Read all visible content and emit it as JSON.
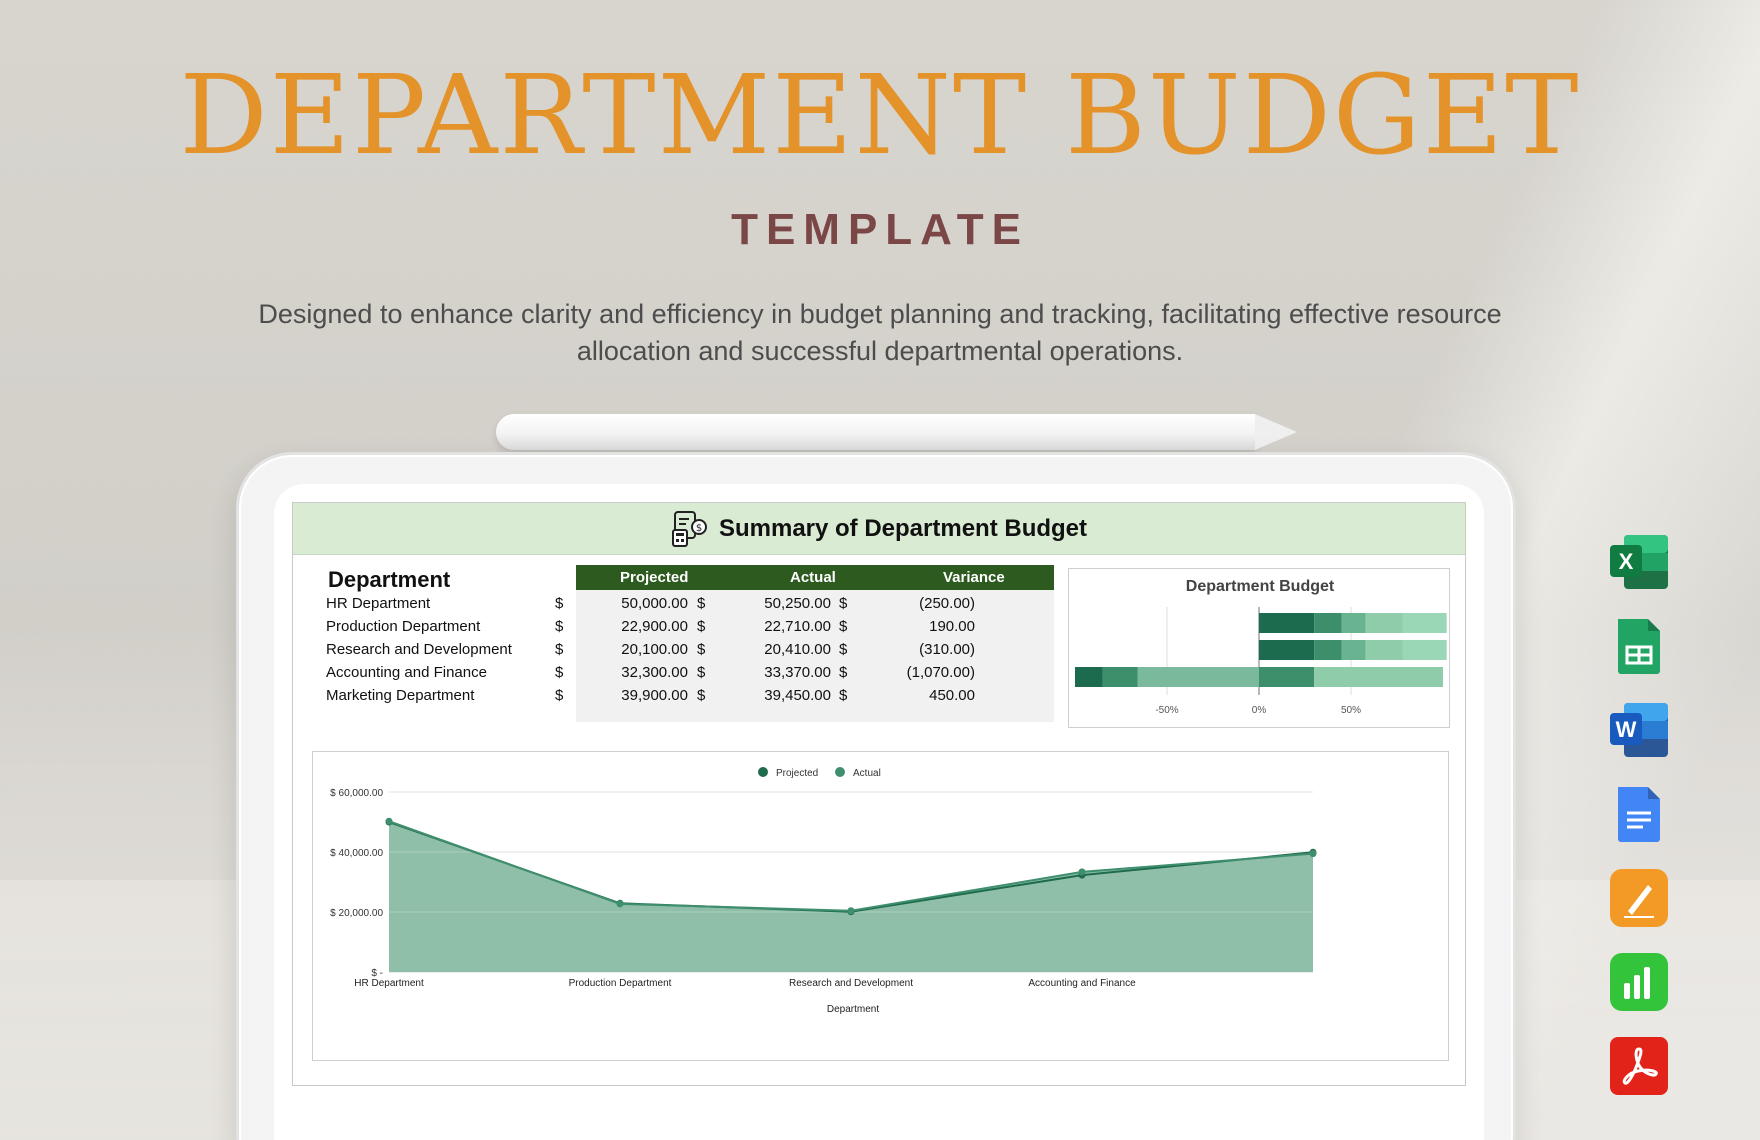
{
  "hero": {
    "title": "DEPARTMENT BUDGET",
    "subtitle": "TEMPLATE",
    "description": "Designed to enhance clarity and efficiency in budget planning and tracking, facilitating effective resource allocation and successful departmental operations."
  },
  "sheet": {
    "title": "Summary of Department Budget",
    "icon": "budget-calculator-icon",
    "header_color": "#d9ebd3",
    "table": {
      "row_header": "Department",
      "columns": [
        "Projected",
        "Actual",
        "Variance"
      ],
      "currency": "$",
      "header_color": "#2d5a1f",
      "rows": [
        {
          "department": "HR Department",
          "projected": "50,000.00",
          "actual": "50,250.00",
          "variance": "(250.00)"
        },
        {
          "department": "Production Department",
          "projected": "22,900.00",
          "actual": "22,710.00",
          "variance": "190.00"
        },
        {
          "department": "Research and Development",
          "projected": "20,100.00",
          "actual": "20,410.00",
          "variance": "(310.00)"
        },
        {
          "department": "Accounting and Finance",
          "projected": "32,300.00",
          "actual": "33,370.00",
          "variance": "(1,070.00)"
        },
        {
          "department": "Marketing Department",
          "projected": "39,900.00",
          "actual": "39,450.00",
          "variance": "450.00"
        }
      ]
    }
  },
  "chart_data": [
    {
      "type": "bar",
      "stacked": true,
      "orientation": "horizontal",
      "title": "Department Budget",
      "x_ticks": [
        "-50%",
        "0%",
        "50%"
      ],
      "xlim": [
        -100,
        100
      ],
      "rows": [
        [
          {
            "value": 30,
            "color": "#1d6b4f"
          },
          {
            "value": 15,
            "color": "#3d8f6c"
          },
          {
            "value": 13,
            "color": "#6ab391"
          },
          {
            "value": 20,
            "color": "#8fcca9"
          },
          {
            "value": 24,
            "color": "#9ad7b6"
          }
        ],
        [
          {
            "value": 30,
            "color": "#1d6b4f"
          },
          {
            "value": 15,
            "color": "#3d8f6c"
          },
          {
            "value": 13,
            "color": "#6ab391"
          },
          {
            "value": 20,
            "color": "#8fcca9"
          },
          {
            "value": 24,
            "color": "#9ad7b6"
          }
        ],
        [
          {
            "value": -66,
            "color": "#7ab99c"
          },
          {
            "value": -19,
            "color": "#3d8f6c"
          },
          {
            "value": -15,
            "color": "#1d6b4f"
          },
          {
            "value": 30,
            "color": "#3d8f6c"
          },
          {
            "value": 70,
            "color": "#8fcca9"
          }
        ]
      ]
    },
    {
      "type": "area",
      "categories": [
        "HR Department",
        "Production Department",
        "Research and Development",
        "Accounting and Finance",
        "Marketing Department"
      ],
      "category_labels": [
        "HR Department",
        "Production Department",
        "Research and Development",
        "Accounting and Finance",
        ""
      ],
      "series": [
        {
          "name": "Projected",
          "values": [
            50000,
            22900,
            20100,
            32300,
            39900
          ],
          "color": "#1f6b4e"
        },
        {
          "name": "Actual",
          "values": [
            50250,
            22710,
            20410,
            33370,
            39450
          ],
          "color": "#3f8f6e"
        }
      ],
      "fill_color": "#8fbfa8",
      "xlabel": "Department",
      "y_ticks": [
        {
          "value": 0,
          "label": "$ -"
        },
        {
          "value": 20000,
          "label": "$ 20,000.00"
        },
        {
          "value": 40000,
          "label": "$ 40,000.00"
        },
        {
          "value": 60000,
          "label": "$ 60,000.00"
        }
      ],
      "ylim": [
        0,
        60000
      ],
      "legend": "top"
    }
  ],
  "apps": [
    {
      "name": "excel-icon",
      "letter": "X",
      "color": "#1e7145"
    },
    {
      "name": "google-sheets-icon",
      "letter": "",
      "color": "#21a464"
    },
    {
      "name": "word-icon",
      "letter": "W",
      "color": "#2b5797"
    },
    {
      "name": "google-docs-icon",
      "letter": "",
      "color": "#4285f4"
    },
    {
      "name": "pages-icon",
      "letter": "",
      "color": "#f39a26"
    },
    {
      "name": "numbers-icon",
      "letter": "",
      "color": "#34c43c"
    },
    {
      "name": "pdf-icon",
      "letter": "",
      "color": "#e2231a"
    }
  ]
}
